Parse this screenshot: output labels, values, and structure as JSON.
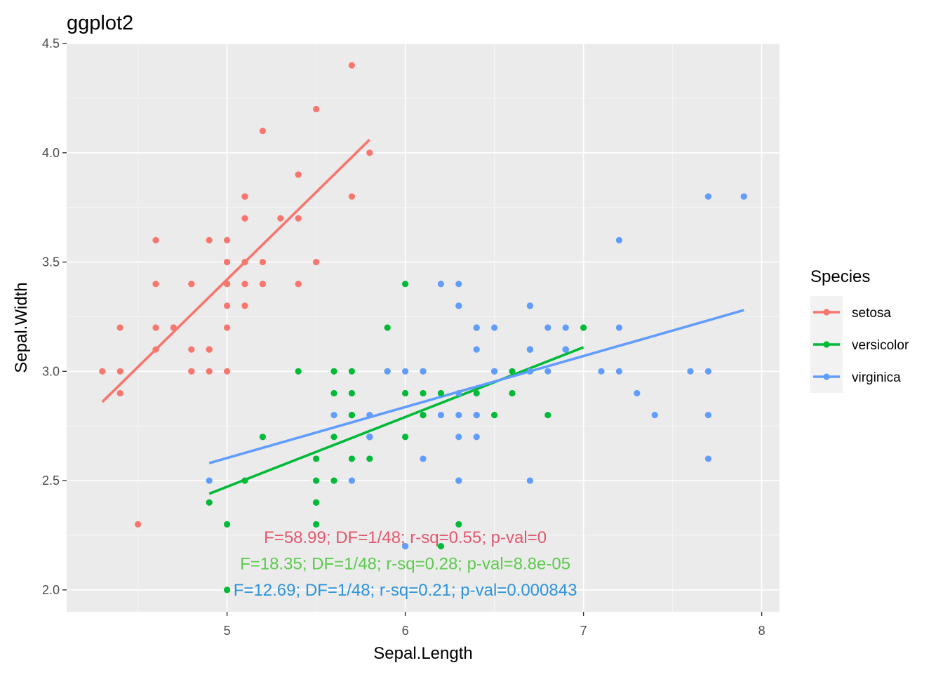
{
  "chart_data": {
    "type": "scatter",
    "title": "ggplot2",
    "xlabel": "Sepal.Length",
    "ylabel": "Sepal.Width",
    "xlim": [
      4.1,
      8.1
    ],
    "ylim": [
      1.9,
      4.5
    ],
    "xticks": [
      "5",
      "6",
      "7",
      "8"
    ],
    "xtick_values": [
      5,
      6,
      7,
      8
    ],
    "yticks": [
      "2.0",
      "2.5",
      "3.0",
      "3.5",
      "4.0",
      "4.5"
    ],
    "ytick_values": [
      2.0,
      2.5,
      3.0,
      3.5,
      4.0,
      4.5
    ],
    "grid": true,
    "legend": {
      "title": "Species",
      "position": "right"
    },
    "series": [
      {
        "name": "setosa",
        "color": "#F8766D",
        "trend": [
          [
            4.3,
            2.86
          ],
          [
            5.8,
            4.06
          ]
        ],
        "points": [
          [
            5.1,
            3.5
          ],
          [
            4.9,
            3.0
          ],
          [
            4.7,
            3.2
          ],
          [
            4.6,
            3.1
          ],
          [
            5.0,
            3.6
          ],
          [
            5.4,
            3.9
          ],
          [
            4.6,
            3.4
          ],
          [
            5.0,
            3.4
          ],
          [
            4.4,
            2.9
          ],
          [
            4.9,
            3.1
          ],
          [
            5.4,
            3.7
          ],
          [
            4.8,
            3.4
          ],
          [
            4.8,
            3.0
          ],
          [
            4.3,
            3.0
          ],
          [
            5.8,
            4.0
          ],
          [
            5.7,
            4.4
          ],
          [
            5.4,
            3.9
          ],
          [
            5.1,
            3.5
          ],
          [
            5.7,
            3.8
          ],
          [
            5.1,
            3.8
          ],
          [
            5.4,
            3.4
          ],
          [
            5.1,
            3.7
          ],
          [
            4.6,
            3.6
          ],
          [
            5.1,
            3.3
          ],
          [
            4.8,
            3.4
          ],
          [
            5.0,
            3.0
          ],
          [
            5.0,
            3.4
          ],
          [
            5.2,
            3.5
          ],
          [
            5.2,
            3.4
          ],
          [
            4.7,
            3.2
          ],
          [
            4.8,
            3.1
          ],
          [
            5.4,
            3.4
          ],
          [
            5.2,
            4.1
          ],
          [
            5.5,
            4.2
          ],
          [
            4.9,
            3.1
          ],
          [
            5.0,
            3.2
          ],
          [
            5.5,
            3.5
          ],
          [
            4.9,
            3.6
          ],
          [
            4.4,
            3.0
          ],
          [
            5.1,
            3.4
          ],
          [
            5.0,
            3.5
          ],
          [
            4.5,
            2.3
          ],
          [
            4.4,
            3.2
          ],
          [
            5.0,
            3.5
          ],
          [
            5.1,
            3.8
          ],
          [
            4.8,
            3.0
          ],
          [
            5.1,
            3.8
          ],
          [
            4.6,
            3.2
          ],
          [
            5.3,
            3.7
          ],
          [
            5.0,
            3.3
          ]
        ]
      },
      {
        "name": "versicolor",
        "color": "#00BA38",
        "trend": [
          [
            4.9,
            2.44
          ],
          [
            7.0,
            3.11
          ]
        ],
        "points": [
          [
            7.0,
            3.2
          ],
          [
            6.4,
            3.2
          ],
          [
            6.9,
            3.1
          ],
          [
            5.5,
            2.3
          ],
          [
            6.5,
            2.8
          ],
          [
            5.7,
            2.8
          ],
          [
            6.3,
            3.3
          ],
          [
            4.9,
            2.4
          ],
          [
            6.6,
            2.9
          ],
          [
            5.2,
            2.7
          ],
          [
            5.0,
            2.0
          ],
          [
            5.9,
            3.0
          ],
          [
            6.0,
            2.2
          ],
          [
            6.1,
            2.9
          ],
          [
            5.6,
            2.9
          ],
          [
            6.7,
            3.1
          ],
          [
            5.6,
            3.0
          ],
          [
            5.8,
            2.7
          ],
          [
            6.2,
            2.2
          ],
          [
            5.6,
            2.5
          ],
          [
            5.9,
            3.2
          ],
          [
            6.1,
            2.8
          ],
          [
            6.3,
            2.5
          ],
          [
            6.1,
            2.8
          ],
          [
            6.4,
            2.9
          ],
          [
            6.6,
            3.0
          ],
          [
            6.8,
            2.8
          ],
          [
            6.7,
            3.0
          ],
          [
            6.0,
            2.9
          ],
          [
            5.7,
            2.6
          ],
          [
            5.5,
            2.4
          ],
          [
            5.5,
            2.4
          ],
          [
            5.8,
            2.7
          ],
          [
            6.0,
            2.7
          ],
          [
            5.4,
            3.0
          ],
          [
            6.0,
            3.4
          ],
          [
            6.7,
            3.1
          ],
          [
            6.3,
            2.3
          ],
          [
            5.6,
            3.0
          ],
          [
            5.5,
            2.5
          ],
          [
            5.5,
            2.6
          ],
          [
            6.1,
            3.0
          ],
          [
            5.8,
            2.6
          ],
          [
            5.0,
            2.3
          ],
          [
            5.6,
            2.7
          ],
          [
            5.7,
            3.0
          ],
          [
            5.7,
            2.9
          ],
          [
            6.2,
            2.9
          ],
          [
            5.1,
            2.5
          ],
          [
            5.7,
            2.8
          ]
        ]
      },
      {
        "name": "virginica",
        "color": "#619CFF",
        "trend": [
          [
            4.9,
            2.58
          ],
          [
            7.9,
            3.28
          ]
        ],
        "points": [
          [
            6.3,
            3.3
          ],
          [
            5.8,
            2.7
          ],
          [
            7.1,
            3.0
          ],
          [
            6.3,
            2.9
          ],
          [
            6.5,
            3.0
          ],
          [
            7.6,
            3.0
          ],
          [
            4.9,
            2.5
          ],
          [
            7.3,
            2.9
          ],
          [
            6.7,
            2.5
          ],
          [
            7.2,
            3.6
          ],
          [
            6.5,
            3.2
          ],
          [
            6.4,
            2.7
          ],
          [
            6.8,
            3.0
          ],
          [
            5.7,
            2.5
          ],
          [
            5.8,
            2.8
          ],
          [
            6.4,
            3.2
          ],
          [
            6.5,
            3.0
          ],
          [
            7.7,
            3.8
          ],
          [
            7.7,
            2.6
          ],
          [
            6.0,
            2.2
          ],
          [
            6.9,
            3.2
          ],
          [
            5.6,
            2.8
          ],
          [
            7.7,
            2.8
          ],
          [
            6.3,
            2.7
          ],
          [
            6.7,
            3.3
          ],
          [
            7.2,
            3.2
          ],
          [
            6.2,
            2.8
          ],
          [
            6.1,
            3.0
          ],
          [
            6.4,
            2.8
          ],
          [
            7.2,
            3.0
          ],
          [
            7.4,
            2.8
          ],
          [
            7.9,
            3.8
          ],
          [
            6.4,
            2.8
          ],
          [
            6.3,
            2.8
          ],
          [
            6.1,
            2.6
          ],
          [
            7.7,
            3.0
          ],
          [
            6.3,
            3.4
          ],
          [
            6.4,
            3.1
          ],
          [
            6.0,
            3.0
          ],
          [
            6.9,
            3.1
          ],
          [
            6.7,
            3.1
          ],
          [
            6.9,
            3.1
          ],
          [
            5.8,
            2.7
          ],
          [
            6.8,
            3.2
          ],
          [
            6.7,
            3.3
          ],
          [
            6.7,
            3.0
          ],
          [
            6.3,
            2.5
          ],
          [
            6.5,
            3.0
          ],
          [
            6.2,
            3.4
          ],
          [
            5.9,
            3.0
          ]
        ]
      }
    ],
    "annotations": [
      {
        "text": "F=58.99; DF=1/48; r-sq=0.55; p-val=0",
        "color": "#E3586E",
        "x": 6.0,
        "y": 2.24
      },
      {
        "text": "F=18.35; DF=1/48; r-sq=0.28; p-val=8.8e-05",
        "color": "#5BCB4C",
        "x": 6.0,
        "y": 2.12
      },
      {
        "text": "F=12.69; DF=1/48; r-sq=0.21; p-val=0.000843",
        "color": "#2D93DB",
        "x": 6.0,
        "y": 2.0
      }
    ]
  }
}
